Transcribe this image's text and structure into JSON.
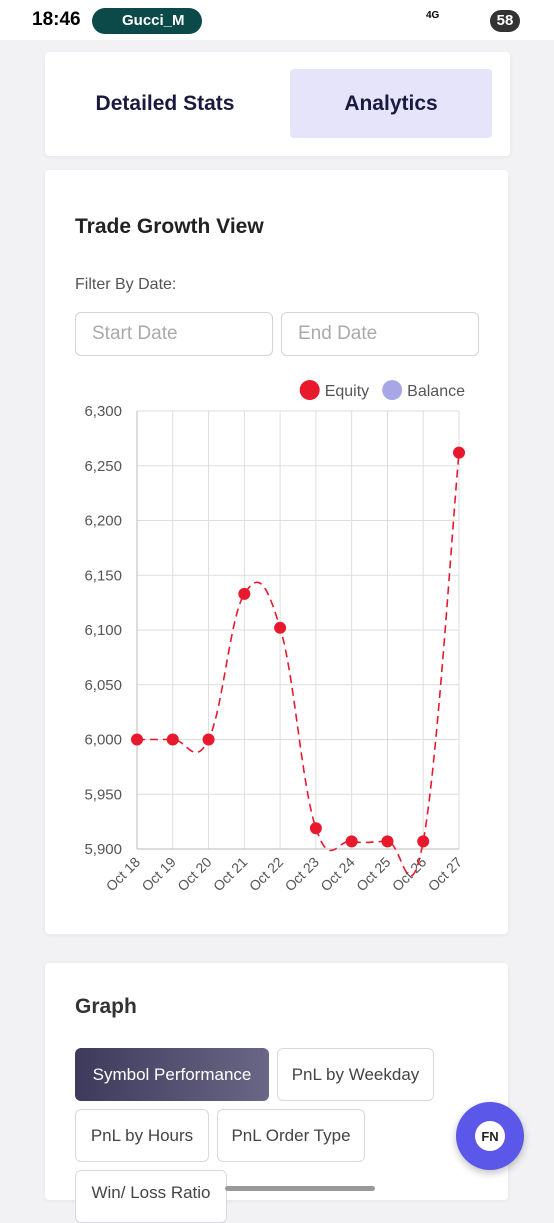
{
  "status_bar": {
    "time": "18:46",
    "app": "Gucci_M",
    "network": "4G",
    "battery": "58"
  },
  "tabs": [
    "Detailed Stats",
    "Analytics"
  ],
  "card": {
    "title": "Trade Growth View",
    "filter_label": "Filter By Date:",
    "start_placeholder": "Start Date",
    "end_placeholder": "End Date"
  },
  "chart_data": {
    "type": "line",
    "categories": [
      "Oct 18",
      "Oct 19",
      "Oct 20",
      "Oct 21",
      "Oct 22",
      "Oct 23",
      "Oct 24",
      "Oct 25",
      "Oct 26",
      "Oct 27"
    ],
    "series": [
      {
        "name": "Equity",
        "color": "#e8192c",
        "values": [
          6000,
          6000,
          6000,
          6133,
          6102,
          5919,
          5907,
          5907,
          5907,
          6262
        ]
      },
      {
        "name": "Balance",
        "color": "#a9a6e6",
        "values": [
          null,
          null,
          null,
          null,
          null,
          null,
          null,
          null,
          null,
          null
        ]
      }
    ],
    "ylim": [
      5900,
      6300
    ],
    "yticks": [
      {
        "value": 5900,
        "label": "5,900"
      },
      {
        "value": 5950,
        "label": "5,950"
      },
      {
        "value": 6000,
        "label": "6,000"
      },
      {
        "value": 6050,
        "label": "6,050"
      },
      {
        "value": 6100,
        "label": "6,100"
      },
      {
        "value": 6150,
        "label": "6,150"
      },
      {
        "value": 6200,
        "label": "6,200"
      },
      {
        "value": 6250,
        "label": "6,250"
      },
      {
        "value": 6300,
        "label": "6,300"
      }
    ],
    "grid": true,
    "legend": "top-right"
  },
  "graph": {
    "title": "Graph",
    "buttons": [
      "Symbol Performance",
      "PnL by Weekday",
      "PnL by Hours",
      "PnL Order Type",
      "Win/ Loss Ratio"
    ]
  },
  "fab": "FN"
}
